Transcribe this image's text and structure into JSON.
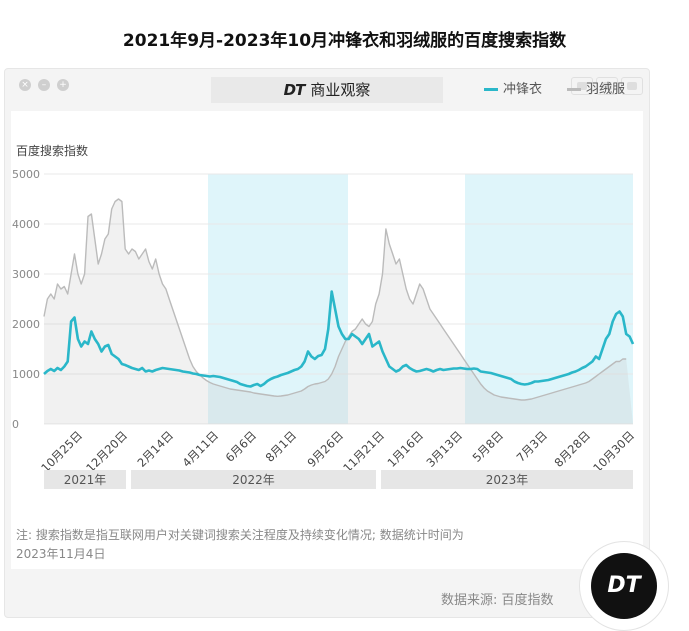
{
  "header": {
    "title": "2021年9月-2023年10月冲锋衣和羽绒服的百度搜索指数"
  },
  "brand": {
    "logo_text": "DT",
    "name": "商业观察"
  },
  "footer": {
    "source": "数据来源: 百度指数",
    "logo_text": "DT"
  },
  "chart_data": {
    "type": "line",
    "ylabel": "百度搜索指数",
    "ylim": [
      0,
      5000
    ],
    "yticks": [
      0,
      1000,
      2000,
      3000,
      4000,
      5000
    ],
    "x_tick_labels": [
      "10月25日",
      "12月20日",
      "2月14日",
      "4月11日",
      "6月6日",
      "8月1日",
      "9月26日",
      "11月21日",
      "1月16日",
      "3月13日",
      "5月8日",
      "7月3日",
      "8月28日",
      "10月30日"
    ],
    "year_labels": [
      "2021年",
      "2022年",
      "2023年"
    ],
    "highlight_periods": [
      [
        "2022-03",
        "2022-09"
      ],
      [
        "2023-03",
        "2023-10"
      ]
    ],
    "note": "注: 搜索指数是指互联网用户对关键词搜索关注程度及持续变化情况; 数据统计时间为2023年11月4日",
    "legend_position": "top-right",
    "series": [
      {
        "name": "冲锋衣",
        "color": "#2ab7c9",
        "values": [
          1000,
          1060,
          1100,
          1060,
          1120,
          1080,
          1150,
          1250,
          2050,
          2130,
          1700,
          1550,
          1650,
          1600,
          1850,
          1700,
          1600,
          1450,
          1550,
          1580,
          1400,
          1350,
          1300,
          1200,
          1180,
          1150,
          1120,
          1100,
          1080,
          1120,
          1050,
          1070,
          1050,
          1080,
          1100,
          1120,
          1110,
          1100,
          1090,
          1080,
          1070,
          1050,
          1040,
          1030,
          1010,
          1000,
          980,
          970,
          960,
          950,
          960,
          950,
          940,
          920,
          900,
          880,
          860,
          840,
          800,
          780,
          760,
          750,
          780,
          800,
          760,
          800,
          860,
          900,
          930,
          950,
          980,
          1000,
          1020,
          1050,
          1080,
          1100,
          1150,
          1250,
          1450,
          1350,
          1300,
          1360,
          1380,
          1500,
          1900,
          2650,
          2300,
          1950,
          1800,
          1700,
          1700,
          1800,
          1750,
          1700,
          1600,
          1700,
          1800,
          1550,
          1600,
          1650,
          1450,
          1300,
          1150,
          1100,
          1050,
          1080,
          1150,
          1180,
          1120,
          1080,
          1050,
          1060,
          1080,
          1100,
          1080,
          1050,
          1080,
          1100,
          1080,
          1090,
          1100,
          1110,
          1110,
          1120,
          1110,
          1100,
          1100,
          1110,
          1100,
          1050,
          1040,
          1030,
          1020,
          1000,
          980,
          960,
          940,
          920,
          900,
          850,
          820,
          800,
          790,
          800,
          820,
          850,
          850,
          860,
          870,
          880,
          900,
          920,
          940,
          960,
          980,
          1000,
          1030,
          1050,
          1080,
          1120,
          1150,
          1200,
          1250,
          1350,
          1300,
          1500,
          1700,
          1800,
          2050,
          2200,
          2250,
          2150,
          1800,
          1750,
          1600
        ]
      },
      {
        "name": "羽绒服",
        "color": "#bbbbbb",
        "values": [
          2150,
          2500,
          2600,
          2500,
          2800,
          2700,
          2750,
          2600,
          3000,
          3400,
          3000,
          2800,
          3000,
          4150,
          4200,
          3700,
          3200,
          3400,
          3700,
          3800,
          4300,
          4450,
          4500,
          4450,
          3500,
          3400,
          3500,
          3450,
          3300,
          3400,
          3500,
          3250,
          3100,
          3300,
          3000,
          2800,
          2700,
          2500,
          2300,
          2100,
          1900,
          1700,
          1500,
          1300,
          1150,
          1050,
          980,
          920,
          870,
          830,
          800,
          780,
          760,
          740,
          720,
          700,
          690,
          680,
          670,
          660,
          650,
          640,
          620,
          610,
          600,
          590,
          580,
          570,
          560,
          555,
          560,
          570,
          580,
          600,
          620,
          640,
          660,
          700,
          750,
          780,
          800,
          810,
          830,
          850,
          900,
          1000,
          1150,
          1350,
          1500,
          1650,
          1750,
          1850,
          1900,
          2000,
          2100,
          2000,
          1950,
          2050,
          2400,
          2600,
          3000,
          3900,
          3600,
          3400,
          3200,
          3300,
          3000,
          2700,
          2500,
          2400,
          2600,
          2800,
          2700,
          2500,
          2300,
          2200,
          2100,
          2000,
          1900,
          1800,
          1700,
          1600,
          1500,
          1400,
          1300,
          1200,
          1100,
          1000,
          900,
          800,
          720,
          660,
          620,
          580,
          560,
          540,
          530,
          520,
          510,
          500,
          490,
          480,
          480,
          490,
          500,
          520,
          540,
          560,
          580,
          600,
          620,
          640,
          660,
          680,
          700,
          720,
          740,
          760,
          780,
          800,
          820,
          850,
          900,
          950,
          1000,
          1050,
          1100,
          1150,
          1200,
          1250,
          1250,
          1300,
          1300
        ]
      }
    ]
  }
}
